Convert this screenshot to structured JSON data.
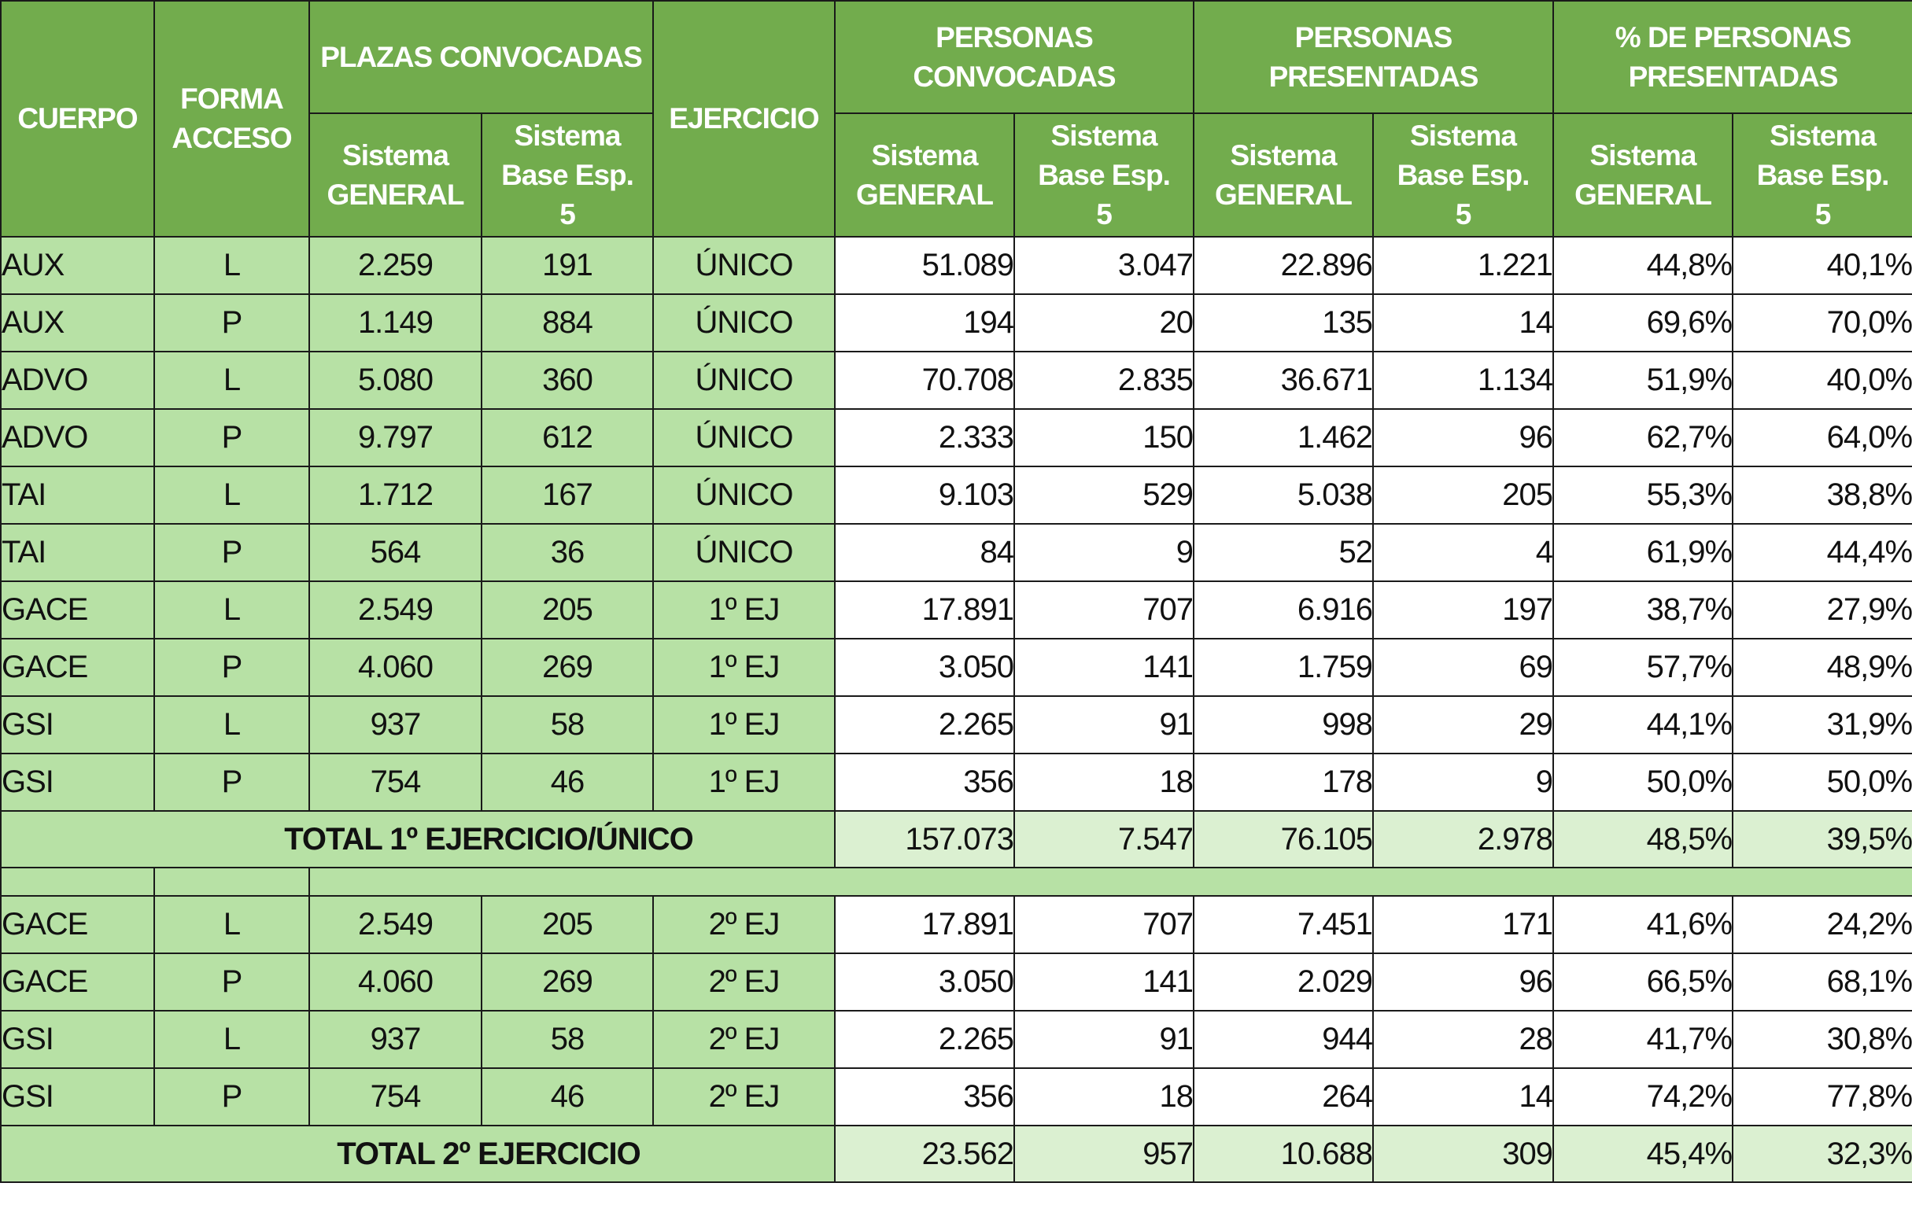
{
  "header": {
    "cuerpo": "CUERPO",
    "forma_acceso": [
      "FORMA",
      "ACCESO"
    ],
    "plazas_convocadas": "PLAZAS CONVOCADAS",
    "ejercicio": "EJERCICIO",
    "personas_convocadas": [
      "PERSONAS",
      "CONVOCADAS"
    ],
    "personas_presentadas": [
      "PERSONAS",
      "PRESENTADAS"
    ],
    "pct_personas_presentadas": [
      "% DE PERSONAS",
      "PRESENTADAS"
    ],
    "sub_general": [
      "Sistema",
      "GENERAL"
    ],
    "sub_base": [
      "Sistema",
      "Base Esp.",
      "5"
    ]
  },
  "colors": {
    "header_bg": "#72ac4d",
    "label_bg": "#b7e1a5",
    "total_bg": "#dbf0d1",
    "number_bg": "#ffffff",
    "border": "#1a1a1a"
  },
  "section1": {
    "rows": [
      {
        "cuerpo": "AUX",
        "forma": "L",
        "plazas_gen": "2.259",
        "plazas_base": "191",
        "ejercicio": "ÚNICO",
        "pc_gen": "51.089",
        "pc_base": "3.047",
        "pp_gen": "22.896",
        "pp_base": "1.221",
        "pct_gen": "44,8%",
        "pct_base": "40,1%"
      },
      {
        "cuerpo": "AUX",
        "forma": "P",
        "plazas_gen": "1.149",
        "plazas_base": "884",
        "ejercicio": "ÚNICO",
        "pc_gen": "194",
        "pc_base": "20",
        "pp_gen": "135",
        "pp_base": "14",
        "pct_gen": "69,6%",
        "pct_base": "70,0%"
      },
      {
        "cuerpo": "ADVO",
        "forma": "L",
        "plazas_gen": "5.080",
        "plazas_base": "360",
        "ejercicio": "ÚNICO",
        "pc_gen": "70.708",
        "pc_base": "2.835",
        "pp_gen": "36.671",
        "pp_base": "1.134",
        "pct_gen": "51,9%",
        "pct_base": "40,0%"
      },
      {
        "cuerpo": "ADVO",
        "forma": "P",
        "plazas_gen": "9.797",
        "plazas_base": "612",
        "ejercicio": "ÚNICO",
        "pc_gen": "2.333",
        "pc_base": "150",
        "pp_gen": "1.462",
        "pp_base": "96",
        "pct_gen": "62,7%",
        "pct_base": "64,0%"
      },
      {
        "cuerpo": "TAI",
        "forma": "L",
        "plazas_gen": "1.712",
        "plazas_base": "167",
        "ejercicio": "ÚNICO",
        "pc_gen": "9.103",
        "pc_base": "529",
        "pp_gen": "5.038",
        "pp_base": "205",
        "pct_gen": "55,3%",
        "pct_base": "38,8%"
      },
      {
        "cuerpo": "TAI",
        "forma": "P",
        "plazas_gen": "564",
        "plazas_base": "36",
        "ejercicio": "ÚNICO",
        "pc_gen": "84",
        "pc_base": "9",
        "pp_gen": "52",
        "pp_base": "4",
        "pct_gen": "61,9%",
        "pct_base": "44,4%"
      },
      {
        "cuerpo": "GACE",
        "forma": "L",
        "plazas_gen": "2.549",
        "plazas_base": "205",
        "ejercicio": "1º EJ",
        "pc_gen": "17.891",
        "pc_base": "707",
        "pp_gen": "6.916",
        "pp_base": "197",
        "pct_gen": "38,7%",
        "pct_base": "27,9%"
      },
      {
        "cuerpo": "GACE",
        "forma": "P",
        "plazas_gen": "4.060",
        "plazas_base": "269",
        "ejercicio": "1º EJ",
        "pc_gen": "3.050",
        "pc_base": "141",
        "pp_gen": "1.759",
        "pp_base": "69",
        "pct_gen": "57,7%",
        "pct_base": "48,9%"
      },
      {
        "cuerpo": "GSI",
        "forma": "L",
        "plazas_gen": "937",
        "plazas_base": "58",
        "ejercicio": "1º EJ",
        "pc_gen": "2.265",
        "pc_base": "91",
        "pp_gen": "998",
        "pp_base": "29",
        "pct_gen": "44,1%",
        "pct_base": "31,9%"
      },
      {
        "cuerpo": "GSI",
        "forma": "P",
        "plazas_gen": "754",
        "plazas_base": "46",
        "ejercicio": "1º EJ",
        "pc_gen": "356",
        "pc_base": "18",
        "pp_gen": "178",
        "pp_base": "9",
        "pct_gen": "50,0%",
        "pct_base": "50,0%"
      }
    ],
    "total": {
      "label": "TOTAL 1º EJERCICIO/ÚNICO",
      "pc_gen": "157.073",
      "pc_base": "7.547",
      "pp_gen": "76.105",
      "pp_base": "2.978",
      "pct_gen": "48,5%",
      "pct_base": "39,5%"
    }
  },
  "section2": {
    "rows": [
      {
        "cuerpo": "GACE",
        "forma": "L",
        "plazas_gen": "2.549",
        "plazas_base": "205",
        "ejercicio": "2º EJ",
        "pc_gen": "17.891",
        "pc_base": "707",
        "pp_gen": "7.451",
        "pp_base": "171",
        "pct_gen": "41,6%",
        "pct_base": "24,2%"
      },
      {
        "cuerpo": "GACE",
        "forma": "P",
        "plazas_gen": "4.060",
        "plazas_base": "269",
        "ejercicio": "2º EJ",
        "pc_gen": "3.050",
        "pc_base": "141",
        "pp_gen": "2.029",
        "pp_base": "96",
        "pct_gen": "66,5%",
        "pct_base": "68,1%"
      },
      {
        "cuerpo": "GSI",
        "forma": "L",
        "plazas_gen": "937",
        "plazas_base": "58",
        "ejercicio": "2º EJ",
        "pc_gen": "2.265",
        "pc_base": "91",
        "pp_gen": "944",
        "pp_base": "28",
        "pct_gen": "41,7%",
        "pct_base": "30,8%"
      },
      {
        "cuerpo": "GSI",
        "forma": "P",
        "plazas_gen": "754",
        "plazas_base": "46",
        "ejercicio": "2º EJ",
        "pc_gen": "356",
        "pc_base": "18",
        "pp_gen": "264",
        "pp_base": "14",
        "pct_gen": "74,2%",
        "pct_base": "77,8%"
      }
    ],
    "total": {
      "label": "TOTAL 2º EJERCICIO",
      "pc_gen": "23.562",
      "pc_base": "957",
      "pp_gen": "10.688",
      "pp_base": "309",
      "pct_gen": "45,4%",
      "pct_base": "32,3%"
    }
  }
}
